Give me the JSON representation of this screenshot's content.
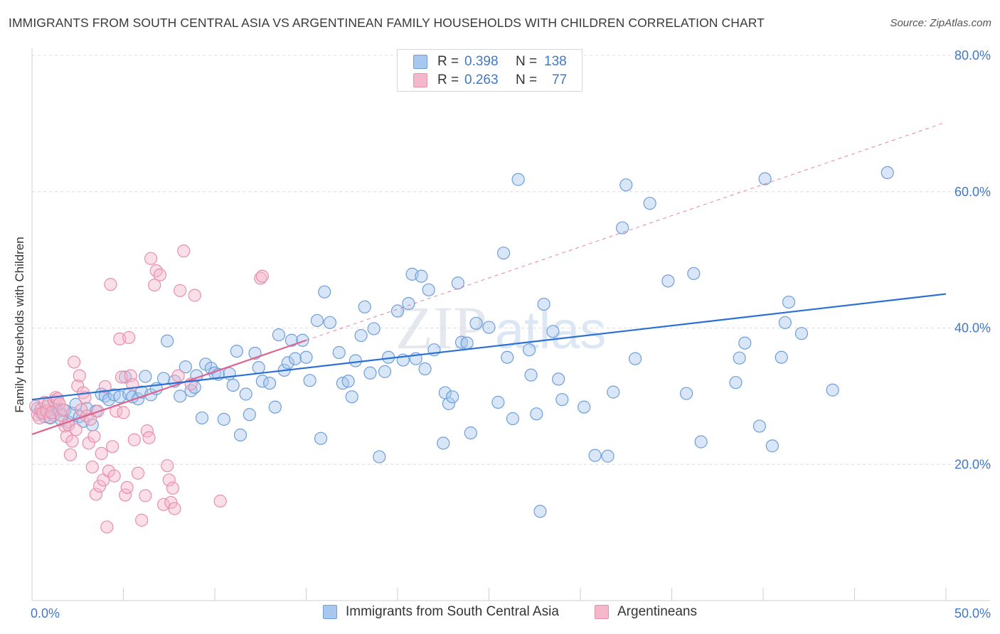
{
  "header": {
    "title": "IMMIGRANTS FROM SOUTH CENTRAL ASIA VS ARGENTINEAN FAMILY HOUSEHOLDS WITH CHILDREN CORRELATION CHART",
    "source": "Source: ZipAtlas.com"
  },
  "watermark": {
    "zip": "ZIP",
    "atlas": "atlas"
  },
  "legend_top": {
    "rows": [
      {
        "r_label": "R =",
        "r_value": "0.398",
        "n_label": "N =",
        "n_value": "138",
        "color": "#a9c8ef"
      },
      {
        "r_label": "R =",
        "r_value": "0.263",
        "n_label": "N =",
        "n_value": "77",
        "color": "#f5b8cb"
      }
    ]
  },
  "legend_bottom": {
    "items": [
      {
        "label": "Immigrants from South Central Asia",
        "color": "#a9c8ef"
      },
      {
        "label": "Argentineans",
        "color": "#f5b8cb"
      }
    ]
  },
  "chart_data": {
    "type": "scatter",
    "title": "IMMIGRANTS FROM SOUTH CENTRAL ASIA VS ARGENTINEAN FAMILY HOUSEHOLDS WITH CHILDREN CORRELATION CHART",
    "ylabel": "Family Households with Children",
    "xlabel": "",
    "xlim": [
      0,
      50
    ],
    "ylim": [
      0,
      80
    ],
    "x_tick_labels": [
      {
        "value": 0,
        "label": "0.0%"
      },
      {
        "value": 50,
        "label": "50.0%"
      }
    ],
    "y_tick_labels": [
      {
        "value": 20,
        "label": "20.0%"
      },
      {
        "value": 40,
        "label": "40.0%"
      },
      {
        "value": 60,
        "label": "60.0%"
      },
      {
        "value": 80,
        "label": "80.0%"
      }
    ],
    "grid": "horizontal dashed",
    "legend_placement": "bottom",
    "colors": {
      "blue_fill": "#a9c8ef",
      "blue_stroke": "#6f9fd8",
      "blue_line": "#2a6fd4",
      "pink_fill": "#f5b8cb",
      "pink_stroke": "#e88fab",
      "pink_line": "#e0628e",
      "tick_text": "#3f78c9",
      "grid": "#dcdcdc"
    },
    "series": [
      {
        "name": "Immigrants from South Central Asia",
        "r": 0.398,
        "n": 138,
        "trend": {
          "x": [
            0,
            50
          ],
          "y": [
            29.5,
            45.0
          ],
          "style": "solid"
        },
        "points": [
          [
            0.3,
            28.2
          ],
          [
            0.5,
            27.5
          ],
          [
            0.7,
            27.0
          ],
          [
            0.8,
            28.5
          ],
          [
            1.0,
            26.8
          ],
          [
            1.2,
            27.2
          ],
          [
            1.3,
            28.0
          ],
          [
            1.5,
            27.8
          ],
          [
            1.6,
            26.5
          ],
          [
            1.8,
            27.9
          ],
          [
            2.0,
            26.2
          ],
          [
            2.2,
            27.5
          ],
          [
            2.4,
            28.8
          ],
          [
            2.6,
            27.0
          ],
          [
            2.8,
            26.3
          ],
          [
            3.0,
            28.2
          ],
          [
            3.3,
            25.8
          ],
          [
            3.5,
            27.8
          ],
          [
            3.8,
            30.3
          ],
          [
            4.0,
            30.0
          ],
          [
            4.2,
            29.5
          ],
          [
            4.5,
            30.2
          ],
          [
            4.8,
            29.9
          ],
          [
            5.1,
            32.8
          ],
          [
            5.3,
            30.3
          ],
          [
            5.5,
            29.9
          ],
          [
            5.8,
            29.6
          ],
          [
            6.0,
            30.6
          ],
          [
            6.2,
            32.9
          ],
          [
            6.5,
            30.2
          ],
          [
            6.8,
            31.1
          ],
          [
            7.2,
            32.6
          ],
          [
            7.4,
            38.1
          ],
          [
            7.8,
            32.2
          ],
          [
            8.1,
            30.0
          ],
          [
            8.4,
            34.3
          ],
          [
            8.7,
            30.8
          ],
          [
            8.9,
            31.3
          ],
          [
            9.0,
            33.0
          ],
          [
            9.3,
            26.8
          ],
          [
            9.5,
            34.7
          ],
          [
            9.8,
            34.1
          ],
          [
            10.0,
            33.4
          ],
          [
            10.2,
            33.2
          ],
          [
            10.5,
            26.6
          ],
          [
            10.8,
            33.3
          ],
          [
            11.0,
            31.6
          ],
          [
            11.2,
            36.6
          ],
          [
            11.4,
            24.3
          ],
          [
            11.7,
            30.3
          ],
          [
            11.9,
            27.3
          ],
          [
            12.2,
            36.3
          ],
          [
            12.4,
            34.2
          ],
          [
            12.6,
            32.2
          ],
          [
            13.0,
            31.9
          ],
          [
            13.3,
            28.4
          ],
          [
            13.5,
            39.0
          ],
          [
            13.8,
            33.8
          ],
          [
            14.0,
            34.9
          ],
          [
            14.2,
            38.2
          ],
          [
            14.4,
            35.5
          ],
          [
            14.8,
            38.2
          ],
          [
            15.0,
            35.7
          ],
          [
            15.2,
            32.3
          ],
          [
            15.6,
            41.1
          ],
          [
            15.8,
            23.8
          ],
          [
            16.0,
            45.3
          ],
          [
            16.3,
            40.8
          ],
          [
            16.8,
            36.4
          ],
          [
            17.0,
            31.9
          ],
          [
            17.3,
            32.2
          ],
          [
            17.5,
            29.9
          ],
          [
            17.7,
            35.2
          ],
          [
            18.0,
            38.9
          ],
          [
            18.2,
            43.1
          ],
          [
            18.5,
            33.4
          ],
          [
            18.7,
            39.9
          ],
          [
            19.0,
            21.1
          ],
          [
            19.3,
            33.6
          ],
          [
            19.5,
            35.7
          ],
          [
            20.0,
            42.5
          ],
          [
            20.3,
            35.3
          ],
          [
            20.6,
            43.6
          ],
          [
            20.8,
            47.9
          ],
          [
            21.0,
            35.5
          ],
          [
            21.3,
            47.6
          ],
          [
            21.5,
            34.0
          ],
          [
            21.7,
            45.6
          ],
          [
            22.0,
            36.8
          ],
          [
            22.5,
            23.1
          ],
          [
            22.6,
            30.5
          ],
          [
            22.8,
            28.9
          ],
          [
            23.0,
            29.9
          ],
          [
            23.3,
            46.6
          ],
          [
            23.5,
            37.9
          ],
          [
            23.8,
            37.8
          ],
          [
            24.0,
            24.6
          ],
          [
            24.3,
            40.7
          ],
          [
            25.0,
            40.1
          ],
          [
            25.5,
            29.1
          ],
          [
            25.8,
            51.0
          ],
          [
            26.0,
            35.7
          ],
          [
            26.3,
            26.7
          ],
          [
            26.6,
            61.8
          ],
          [
            27.2,
            36.8
          ],
          [
            27.3,
            33.1
          ],
          [
            27.6,
            27.4
          ],
          [
            27.8,
            13.1
          ],
          [
            28.0,
            43.5
          ],
          [
            28.5,
            39.5
          ],
          [
            28.8,
            32.5
          ],
          [
            29.0,
            29.5
          ],
          [
            30.2,
            28.4
          ],
          [
            30.8,
            21.3
          ],
          [
            31.5,
            21.2
          ],
          [
            31.8,
            30.6
          ],
          [
            32.3,
            54.7
          ],
          [
            32.5,
            61.0
          ],
          [
            33.0,
            35.5
          ],
          [
            33.8,
            58.3
          ],
          [
            34.8,
            46.9
          ],
          [
            35.8,
            30.4
          ],
          [
            36.2,
            48.0
          ],
          [
            36.6,
            23.3
          ],
          [
            38.5,
            32.0
          ],
          [
            38.7,
            35.6
          ],
          [
            39.0,
            37.8
          ],
          [
            39.8,
            25.6
          ],
          [
            40.1,
            61.9
          ],
          [
            40.5,
            22.7
          ],
          [
            41.0,
            35.7
          ],
          [
            41.2,
            40.8
          ],
          [
            41.4,
            43.8
          ],
          [
            42.1,
            39.2
          ],
          [
            43.8,
            30.9
          ],
          [
            46.8,
            62.8
          ]
        ]
      },
      {
        "name": "Argentineans",
        "r": 0.263,
        "n": 77,
        "trend": {
          "x": [
            0,
            15
          ],
          "y": [
            24.4,
            38.2
          ],
          "style": "solid",
          "extension": {
            "x": [
              15,
              50
            ],
            "y": [
              38.2,
              70.2
            ],
            "style": "dashed"
          }
        },
        "points": [
          [
            0.2,
            28.5
          ],
          [
            0.3,
            27.3
          ],
          [
            0.4,
            26.8
          ],
          [
            0.5,
            28.1
          ],
          [
            0.6,
            27.5
          ],
          [
            0.7,
            29.1
          ],
          [
            0.8,
            27.8
          ],
          [
            0.9,
            28.9
          ],
          [
            1.0,
            26.9
          ],
          [
            1.1,
            27.6
          ],
          [
            1.2,
            29.3
          ],
          [
            1.3,
            29.8
          ],
          [
            1.4,
            29.6
          ],
          [
            1.5,
            28.9
          ],
          [
            1.6,
            27.2
          ],
          [
            1.7,
            28.0
          ],
          [
            1.8,
            25.6
          ],
          [
            1.9,
            24.1
          ],
          [
            2.0,
            25.8
          ],
          [
            2.1,
            21.4
          ],
          [
            2.2,
            23.4
          ],
          [
            2.3,
            35.0
          ],
          [
            2.4,
            25.1
          ],
          [
            2.5,
            31.5
          ],
          [
            2.6,
            33.0
          ],
          [
            2.7,
            28.0
          ],
          [
            2.8,
            30.5
          ],
          [
            2.9,
            29.8
          ],
          [
            3.0,
            27.1
          ],
          [
            3.1,
            23.1
          ],
          [
            3.2,
            26.6
          ],
          [
            3.3,
            19.6
          ],
          [
            3.4,
            24.1
          ],
          [
            3.5,
            15.6
          ],
          [
            3.6,
            27.8
          ],
          [
            3.7,
            16.8
          ],
          [
            3.8,
            21.6
          ],
          [
            3.9,
            17.7
          ],
          [
            4.0,
            31.4
          ],
          [
            4.1,
            10.8
          ],
          [
            4.2,
            19.0
          ],
          [
            4.3,
            46.4
          ],
          [
            4.4,
            22.6
          ],
          [
            4.5,
            18.3
          ],
          [
            4.6,
            27.8
          ],
          [
            4.8,
            38.4
          ],
          [
            4.9,
            32.8
          ],
          [
            5.0,
            27.6
          ],
          [
            5.1,
            15.5
          ],
          [
            5.2,
            16.6
          ],
          [
            5.3,
            38.6
          ],
          [
            5.4,
            33.0
          ],
          [
            5.5,
            31.7
          ],
          [
            5.6,
            23.6
          ],
          [
            5.8,
            18.7
          ],
          [
            6.0,
            11.8
          ],
          [
            6.2,
            15.4
          ],
          [
            6.3,
            24.9
          ],
          [
            6.4,
            23.9
          ],
          [
            6.5,
            50.2
          ],
          [
            6.7,
            46.3
          ],
          [
            6.8,
            48.4
          ],
          [
            7.0,
            47.8
          ],
          [
            7.2,
            14.1
          ],
          [
            7.4,
            19.8
          ],
          [
            7.5,
            17.7
          ],
          [
            7.6,
            14.4
          ],
          [
            7.7,
            16.5
          ],
          [
            7.8,
            13.5
          ],
          [
            8.0,
            33.0
          ],
          [
            8.1,
            45.5
          ],
          [
            8.3,
            51.3
          ],
          [
            8.7,
            31.8
          ],
          [
            8.9,
            44.8
          ],
          [
            10.3,
            14.6
          ],
          [
            12.5,
            47.3
          ],
          [
            12.6,
            47.6
          ]
        ]
      }
    ]
  }
}
